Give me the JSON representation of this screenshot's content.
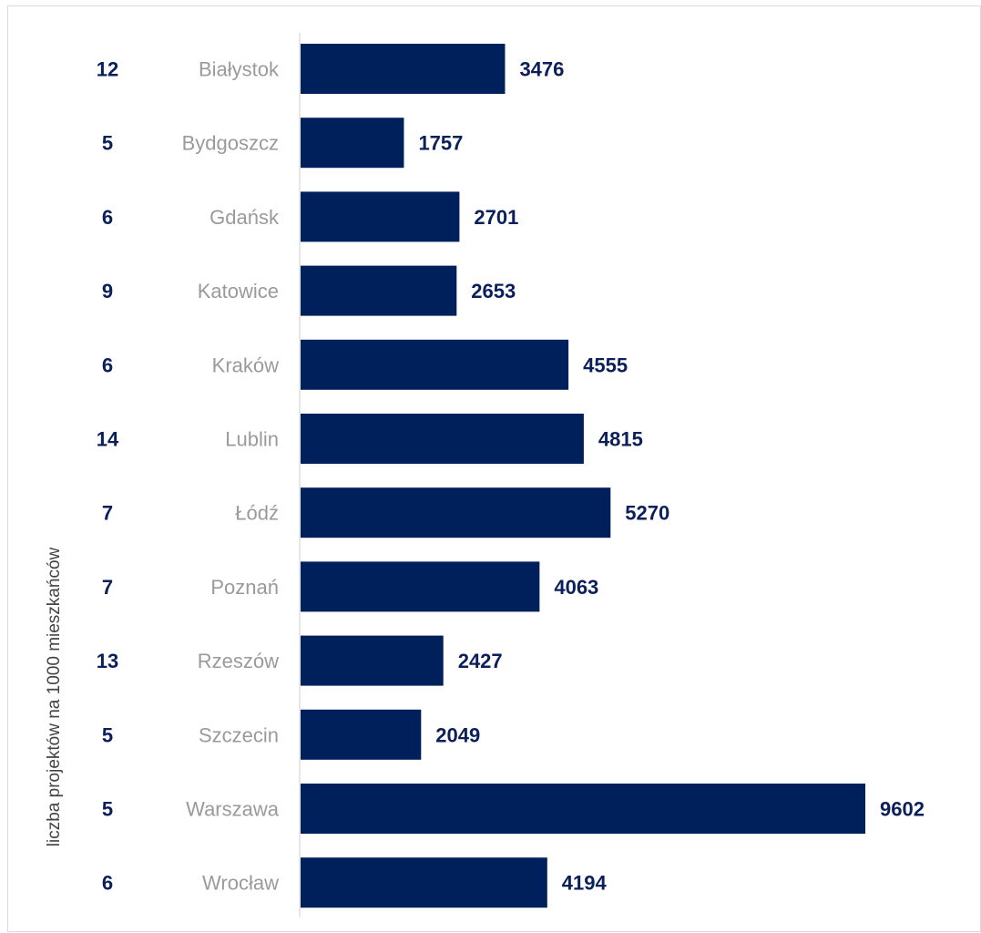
{
  "chart_data": {
    "type": "bar",
    "orientation": "horizontal",
    "ylabel": "liczba projektów na 1000 mieszkańców",
    "categories": [
      "Białystok",
      "Bydgoszcz",
      "Gdańsk",
      "Katowice",
      "Kraków",
      "Lublin",
      "Łódź",
      "Poznań",
      "Rzeszów",
      "Szczecin",
      "Warszawa",
      "Wrocław"
    ],
    "values": [
      3476,
      1757,
      2701,
      2653,
      4555,
      4815,
      5270,
      4063,
      2427,
      2049,
      9602,
      4194
    ],
    "per_1000": [
      12,
      5,
      6,
      9,
      6,
      14,
      7,
      7,
      13,
      5,
      5,
      6
    ],
    "xlim": [
      0,
      9602
    ],
    "bar_color": "#00205b",
    "grid": false
  }
}
